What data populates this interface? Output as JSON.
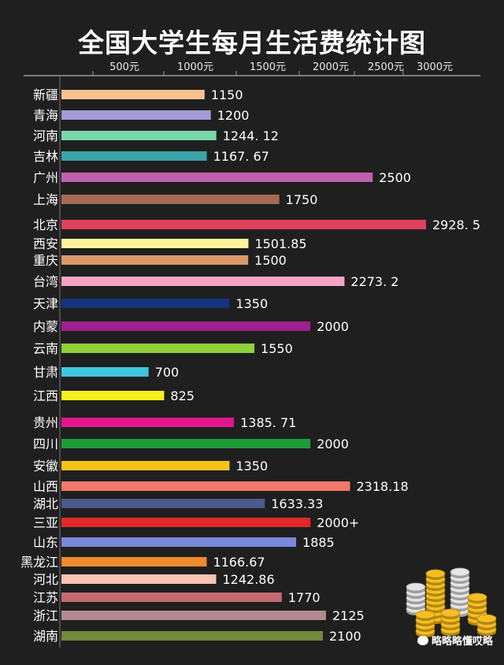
{
  "chart_data": {
    "type": "bar",
    "orientation": "horizontal",
    "title": "全国大学生每月生活费统计图",
    "x_tick_labels": [
      {
        "value": 500,
        "label": "500元"
      },
      {
        "value": 1000,
        "label": "1000元"
      },
      {
        "value": 1500,
        "label": "1500元"
      },
      {
        "value": 2000,
        "label": "2000元"
      },
      {
        "value": 2500,
        "label": "2500元"
      },
      {
        "value": 3000,
        "label": "3000元"
      }
    ],
    "xlim": [
      0,
      3000
    ],
    "bars": [
      {
        "category": "新疆",
        "value": 1150,
        "label": "1150",
        "color": "#f6c28f"
      },
      {
        "category": "青海",
        "value": 1200,
        "label": "1200",
        "color": "#a59ad8"
      },
      {
        "category": "河南",
        "value": 1244.12,
        "label": "1244. 12",
        "color": "#78d8a8"
      },
      {
        "category": "吉林",
        "value": 1167.67,
        "label": "1167. 67",
        "color": "#3aa3a8"
      },
      {
        "category": "广州",
        "value": 2500,
        "label": "2500",
        "color": "#c25fb0"
      },
      {
        "category": "上海",
        "value": 1750,
        "label": "1750",
        "color": "#a66b52"
      },
      {
        "category": "北京",
        "value": 2928.5,
        "label": "2928. 5",
        "color": "#e0405c"
      },
      {
        "category": "西安",
        "value": 1501.85,
        "label": "1501.85",
        "color": "#fff29a"
      },
      {
        "category": "重庆",
        "value": 1500,
        "label": "1500",
        "color": "#d99a6a"
      },
      {
        "category": "台湾",
        "value": 2273.2,
        "label": "2273. 2",
        "color": "#f5a3c4"
      },
      {
        "category": "天津",
        "value": 1350,
        "label": "1350",
        "color": "#15337a"
      },
      {
        "category": "内蒙",
        "value": 2000,
        "label": "2000",
        "color": "#a0208e"
      },
      {
        "category": "云南",
        "value": 1550,
        "label": "1550",
        "color": "#8ed13a"
      },
      {
        "category": "甘肃",
        "value": 700,
        "label": "700",
        "color": "#3ec6e0"
      },
      {
        "category": "江西",
        "value": 825,
        "label": "825",
        "color": "#f7ef1e"
      },
      {
        "category": "贵州",
        "value": 1385.71,
        "label": "1385. 71",
        "color": "#e0178c"
      },
      {
        "category": "四川",
        "value": 2000,
        "label": "2000",
        "color": "#1f9b3a"
      },
      {
        "category": "安徽",
        "value": 1350,
        "label": "1350",
        "color": "#f5c21a"
      },
      {
        "category": "山西",
        "value": 2318.18,
        "label": "2318.18",
        "color": "#f07a6a"
      },
      {
        "category": "湖北",
        "value": 1633.33,
        "label": "1633.33",
        "color": "#4a5a8a"
      },
      {
        "category": "三亚",
        "value": 2000,
        "label": "2000+",
        "color": "#e0282a"
      },
      {
        "category": "山东",
        "value": 1885,
        "label": "1885",
        "color": "#7a88d8"
      },
      {
        "category": "黑龙江",
        "value": 1166.67,
        "label": "1166.67",
        "color": "#f08a28"
      },
      {
        "category": "河北",
        "value": 1242.86,
        "label": "1242.86",
        "color": "#f7c4b4"
      },
      {
        "category": "江苏",
        "value": 1770,
        "label": "1770",
        "color": "#c46a72"
      },
      {
        "category": "浙江",
        "value": 2125,
        "label": "2125",
        "color": "#b08a90"
      },
      {
        "category": "湖南",
        "value": 2100,
        "label": "2100",
        "color": "#6e8a3a"
      }
    ],
    "grid": false,
    "legend": "none"
  },
  "watermark": "略略略懂哎略"
}
